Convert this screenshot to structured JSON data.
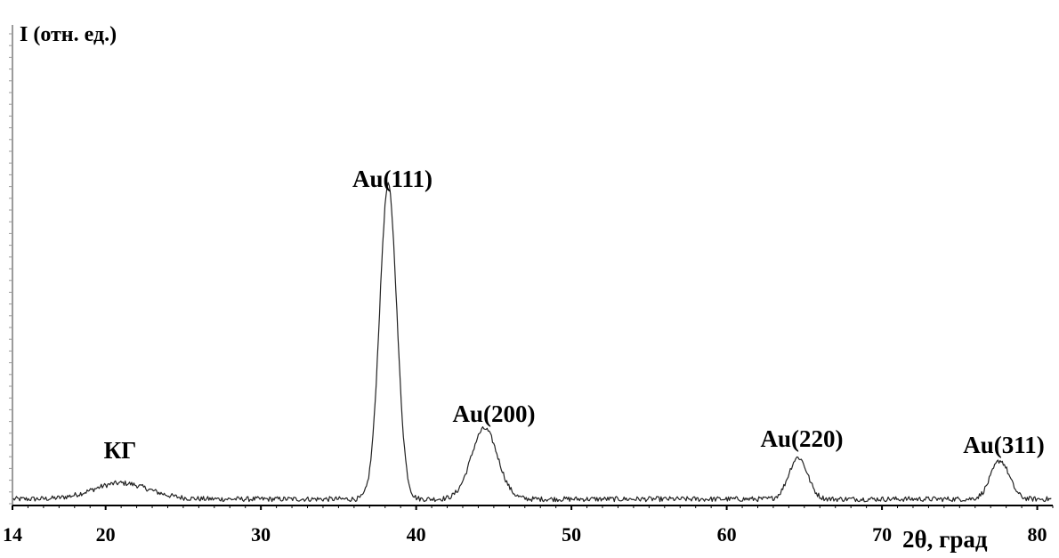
{
  "chart_data": {
    "type": "line",
    "title": "",
    "ylabel": "I (отн. ед.)",
    "xlabel": "2θ, град",
    "xlim": [
      14,
      81
    ],
    "ylim": [
      0,
      1.5
    ],
    "grid": false,
    "x_ticks": [
      "14",
      "20",
      "30",
      "40",
      "50",
      "60",
      "70",
      "80"
    ],
    "baseline": 0.02,
    "noise": 0.008,
    "peaks": [
      {
        "label": "КГ",
        "center": 21.0,
        "height": 0.05,
        "width": 1.8
      },
      {
        "label": "Au(111)",
        "center": 38.2,
        "height": 0.98,
        "width": 0.55
      },
      {
        "label": "Au(200)",
        "center": 44.4,
        "height": 0.22,
        "width": 0.85
      },
      {
        "label": "Au(220)",
        "center": 64.6,
        "height": 0.13,
        "width": 0.6
      },
      {
        "label": "Au(311)",
        "center": 77.6,
        "height": 0.12,
        "width": 0.6
      }
    ],
    "series": [
      {
        "x": [
          14,
          16,
          18,
          19,
          20,
          21,
          22,
          23,
          25,
          28,
          32,
          35,
          36,
          37,
          37.5,
          38.0,
          38.2,
          38.5,
          39.0,
          39.5,
          40,
          41,
          42,
          43,
          44,
          44.4,
          45,
          46,
          47,
          50,
          55,
          60,
          63,
          64,
          64.6,
          65,
          66,
          68,
          72,
          75,
          76.5,
          77,
          77.6,
          78,
          79,
          81
        ],
        "values": [
          0.02,
          0.02,
          0.025,
          0.045,
          0.06,
          0.065,
          0.06,
          0.04,
          0.02,
          0.02,
          0.02,
          0.02,
          0.04,
          0.22,
          0.6,
          0.95,
          0.98,
          0.8,
          0.33,
          0.12,
          0.05,
          0.03,
          0.05,
          0.11,
          0.19,
          0.22,
          0.17,
          0.07,
          0.03,
          0.02,
          0.02,
          0.02,
          0.03,
          0.07,
          0.13,
          0.1,
          0.04,
          0.02,
          0.02,
          0.02,
          0.05,
          0.09,
          0.12,
          0.09,
          0.04,
          0.02
        ]
      }
    ]
  }
}
